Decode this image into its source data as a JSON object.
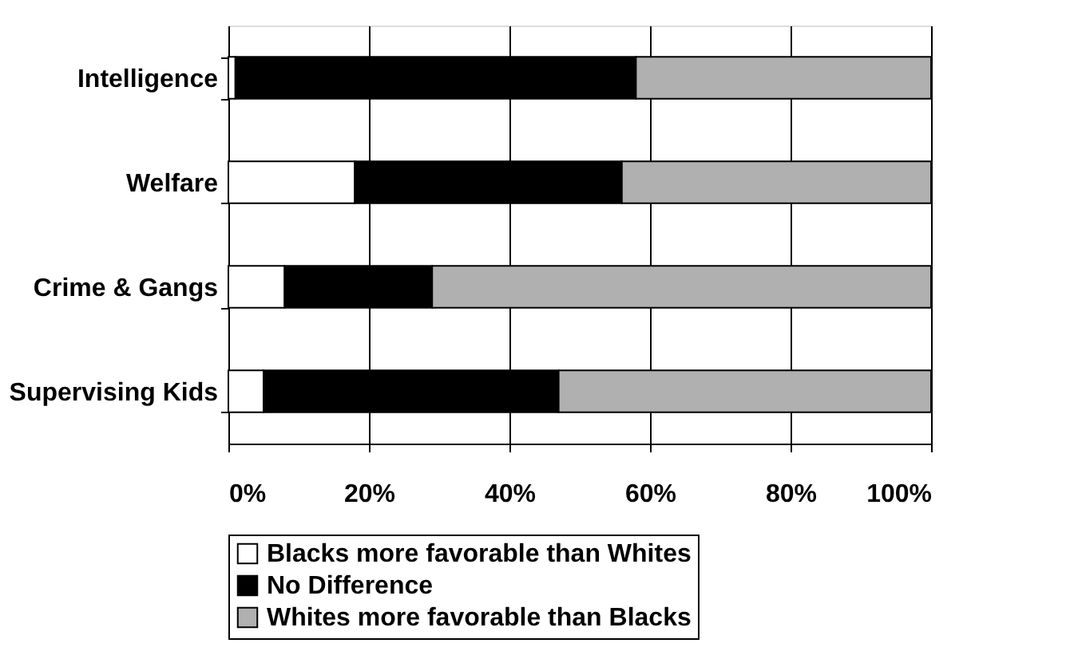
{
  "chart_data": {
    "type": "bar",
    "orientation": "horizontal",
    "stacked": true,
    "categories": [
      "Intelligence",
      "Welfare",
      "Crime & Gangs",
      "Supervising Kids"
    ],
    "series": [
      {
        "name": "Blacks more favorable than Whites",
        "color": "#ffffff",
        "values": [
          1,
          18,
          8,
          5
        ]
      },
      {
        "name": "No Difference",
        "color": "#000000",
        "values": [
          57,
          38,
          21,
          42
        ]
      },
      {
        "name": "Whites more favorable than Blacks",
        "color": "#b0b0b0",
        "values": [
          42,
          44,
          71,
          53
        ]
      }
    ],
    "xlim": [
      0,
      100
    ],
    "xticks": [
      {
        "value": 0,
        "label": "0%"
      },
      {
        "value": 20,
        "label": "20%"
      },
      {
        "value": 40,
        "label": "40%"
      },
      {
        "value": 60,
        "label": "60%"
      },
      {
        "value": 80,
        "label": "80%"
      },
      {
        "value": 100,
        "label": "100%"
      }
    ],
    "grid": "x",
    "legend": "bottom"
  }
}
